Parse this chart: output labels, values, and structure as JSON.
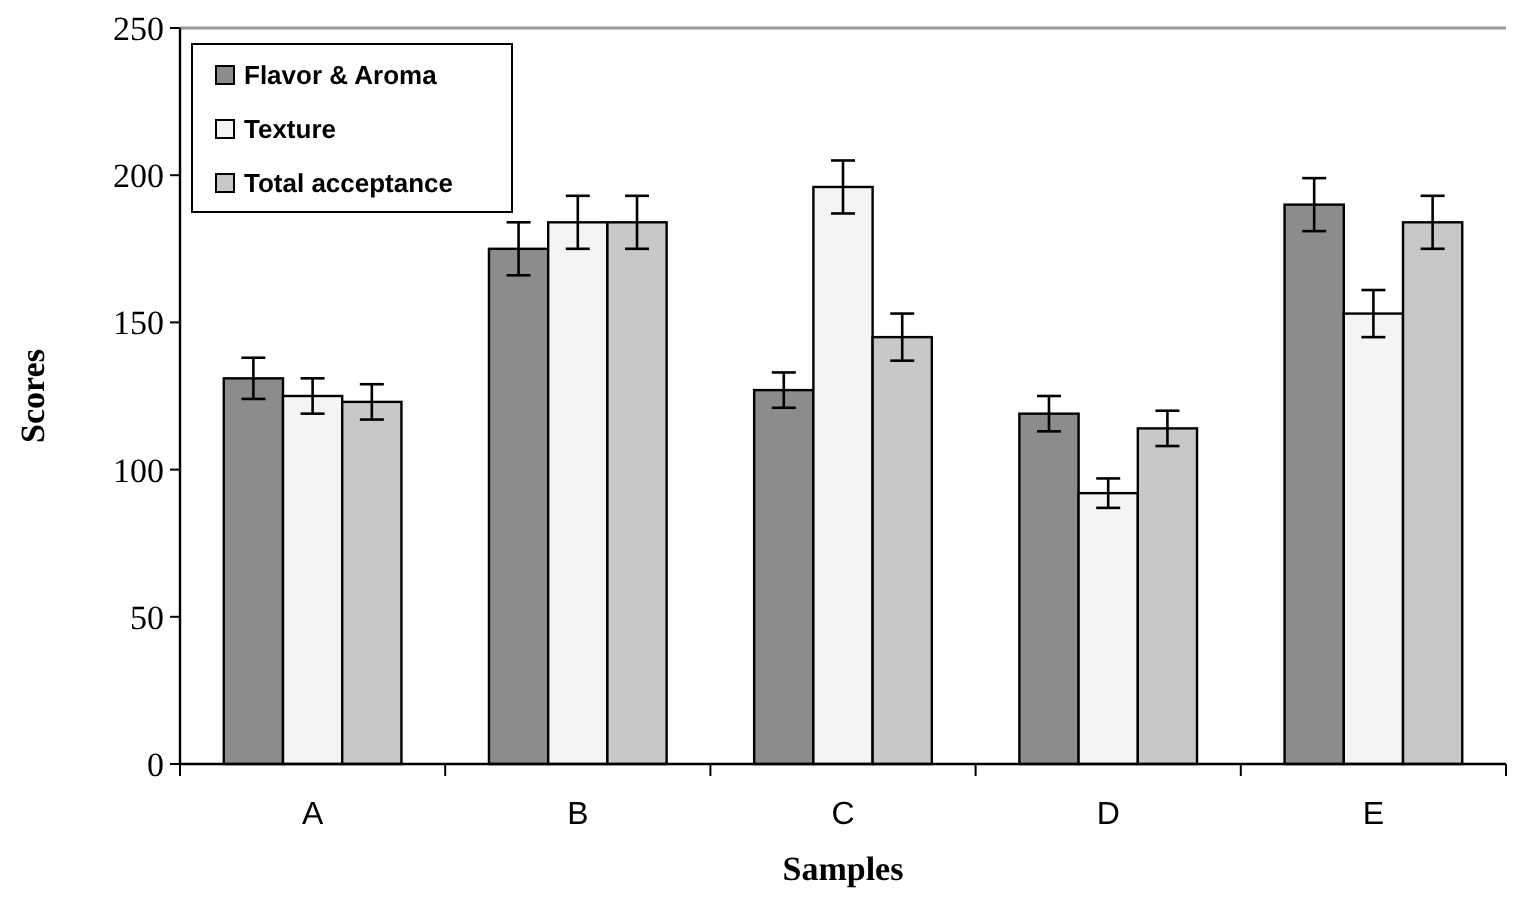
{
  "chart_data": {
    "type": "bar",
    "xlabel": "Samples",
    "ylabel": "Scores",
    "categories": [
      "A",
      "B",
      "C",
      "D",
      "E"
    ],
    "series": [
      {
        "name": "Flavor & Aroma",
        "color": "#8c8c8c",
        "values": [
          131,
          175,
          127,
          119,
          190
        ],
        "errors": [
          7,
          9,
          6,
          6,
          9
        ]
      },
      {
        "name": "Texture",
        "color": "#f4f4f4",
        "values": [
          125,
          184,
          196,
          92,
          153
        ],
        "errors": [
          6,
          9,
          9,
          5,
          8
        ]
      },
      {
        "name": "Total acceptance",
        "color": "#c8c8c8",
        "values": [
          123,
          184,
          145,
          114,
          184
        ],
        "errors": [
          6,
          9,
          8,
          6,
          9
        ]
      }
    ],
    "ylim": [
      0,
      250
    ],
    "yticks": [
      0,
      50,
      100,
      150,
      200,
      250
    ],
    "grid": false,
    "legend": "top left"
  }
}
